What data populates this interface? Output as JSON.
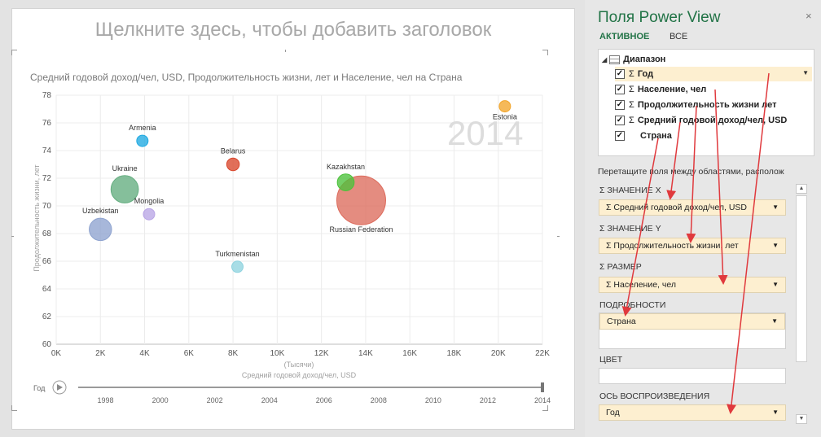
{
  "canvas": {
    "title_placeholder": "Щелкните здесь, чтобы добавить заголовок"
  },
  "chart_data": {
    "type": "scatter",
    "subtitle": "Средний годовой доход/чел, USD, Продолжительность жизни, лет и Население, чел на Страна",
    "watermark_year": "2014",
    "xlabel_units": "(Тысячи)",
    "xlabel": "Средний годовой доход/чел, USD",
    "ylabel": "Продолжительность жизни, лет",
    "xlim": [
      0,
      22
    ],
    "ylim": [
      60,
      78
    ],
    "x_ticks": [
      "0K",
      "2K",
      "4K",
      "6K",
      "8K",
      "10K",
      "12K",
      "14K",
      "16K",
      "18K",
      "20K",
      "22K"
    ],
    "y_ticks": [
      "60",
      "62",
      "64",
      "66",
      "68",
      "70",
      "72",
      "74",
      "76",
      "78"
    ],
    "grid": true,
    "points": [
      {
        "label": "Armenia",
        "x": 3.9,
        "y": 74.7,
        "size": 3.0,
        "color": "#1fa9e1"
      },
      {
        "label": "Estonia",
        "x": 20.3,
        "y": 77.2,
        "size": 1.3,
        "color": "#f2a52a"
      },
      {
        "label": "Belarus",
        "x": 8.0,
        "y": 73.0,
        "size": 9.5,
        "color": "#d9462c"
      },
      {
        "label": "Kazakhstan",
        "x": 13.1,
        "y": 71.7,
        "size": 17.0,
        "color": "#4cc23b"
      },
      {
        "label": "Ukraine",
        "x": 3.1,
        "y": 71.2,
        "size": 45.0,
        "color": "#63ad7f"
      },
      {
        "label": "Mongolia",
        "x": 4.2,
        "y": 69.4,
        "size": 2.9,
        "color": "#b9a5e6"
      },
      {
        "label": "Uzbekistan",
        "x": 2.0,
        "y": 68.3,
        "size": 30.0,
        "color": "#8ea3cf"
      },
      {
        "label": "Russian Federation",
        "x": 13.8,
        "y": 70.4,
        "size": 143.0,
        "color": "#dd6b5c"
      },
      {
        "label": "Turkmenistan",
        "x": 8.2,
        "y": 65.6,
        "size": 5.3,
        "color": "#8fd3df"
      }
    ],
    "play_axis": {
      "label": "Год",
      "ticks": [
        "1998",
        "2000",
        "2002",
        "2004",
        "2006",
        "2008",
        "2010",
        "2012",
        "2014"
      ],
      "range": [
        1997,
        2014
      ],
      "current": 2014
    }
  },
  "panel": {
    "title": "Поля Power View",
    "close": "×",
    "tabs": [
      {
        "label": "АКТИВНОЕ"
      },
      {
        "label": "ВСЕ"
      }
    ],
    "table_name": "Диапазон",
    "fields": [
      {
        "label": "Год",
        "sigma": true,
        "checked": true,
        "highlight": true
      },
      {
        "label": "Население, чел",
        "sigma": true,
        "checked": true
      },
      {
        "label": "Продолжительность жизни лет",
        "sigma": true,
        "checked": true
      },
      {
        "label": "Средний годовой доход/чел, USD",
        "sigma": true,
        "checked": true
      },
      {
        "label": "Страна",
        "sigma": false,
        "checked": true
      }
    ],
    "drag_hint": "Перетащите поля между областями, располож",
    "areas": {
      "x": {
        "label": "ЗНАЧЕНИЕ X",
        "value": "Средний годовой доход/чел, USD"
      },
      "y": {
        "label": "ЗНАЧЕНИЕ Y",
        "value": "Продолжительность жизни, лет"
      },
      "size": {
        "label": "РАЗМЕР",
        "value": "Население, чел"
      },
      "details": {
        "label": "ПОДРОБНОСТИ",
        "value": "Страна"
      },
      "color": {
        "label": "ЦВЕТ"
      },
      "play": {
        "label": "ОСЬ ВОСПРОИЗВЕДЕНИЯ",
        "value": "Год"
      }
    }
  },
  "colors": {
    "accent": "#217346",
    "highlight": "#fdefd0",
    "arrow": "#e0393d"
  }
}
